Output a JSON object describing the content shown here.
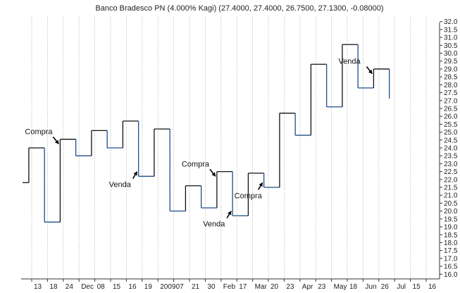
{
  "chart_data": {
    "type": "kagi",
    "title": "Banco Bradesco PN (4.000% Kagi) (27.4000, 27.4000, 26.7500, 27.1300, -0.08000)",
    "y_ticks": [
      "16.0",
      "16.5",
      "17.0",
      "17.5",
      "18.0",
      "18.5",
      "19.0",
      "19.5",
      "20.0",
      "20.5",
      "21.0",
      "21.5",
      "22.0",
      "22.5",
      "23.0",
      "23.5",
      "24.0",
      "24.5",
      "25.0",
      "25.5",
      "26.0",
      "26.5",
      "27.0",
      "27.5",
      "28.0",
      "28.5",
      "29.0",
      "29.5",
      "30.0",
      "30.5",
      "31.0",
      "31.5",
      "32.0"
    ],
    "ylim": [
      15.7,
      32.3
    ],
    "x_ticks": [
      "13",
      "18",
      "24",
      "Dec",
      "08",
      "15",
      "16",
      "19",
      "2009",
      "07",
      "21",
      "30",
      "Feb",
      "17",
      "Mar",
      "20",
      "23",
      "Apr",
      "23",
      "May",
      "18",
      "Jun",
      "26",
      "Jul",
      "15",
      "16"
    ],
    "grid": true,
    "colors": {
      "up": "#111111",
      "down": "#1f4e8c",
      "grid": "#9a9a9a"
    },
    "kagi": {
      "start": 21.8,
      "segments": [
        {
          "dir": "up",
          "to": 24.0
        },
        {
          "dir": "down",
          "to": 19.3
        },
        {
          "dir": "up",
          "to": 24.55
        },
        {
          "dir": "down",
          "to": 23.5
        },
        {
          "dir": "up",
          "to": 25.1
        },
        {
          "dir": "down",
          "to": 24.0
        },
        {
          "dir": "up",
          "to": 25.7
        },
        {
          "dir": "down",
          "to": 22.2
        },
        {
          "dir": "up",
          "to": 25.2
        },
        {
          "dir": "down",
          "to": 20.0
        },
        {
          "dir": "up",
          "to": 21.6
        },
        {
          "dir": "down",
          "to": 20.2
        },
        {
          "dir": "up",
          "to": 22.5
        },
        {
          "dir": "down",
          "to": 19.7
        },
        {
          "dir": "up",
          "to": 22.4
        },
        {
          "dir": "down",
          "to": 21.5
        },
        {
          "dir": "up",
          "to": 26.2
        },
        {
          "dir": "down",
          "to": 24.8
        },
        {
          "dir": "up",
          "to": 29.3
        },
        {
          "dir": "down",
          "to": 26.6
        },
        {
          "dir": "up",
          "to": 30.55
        },
        {
          "dir": "down",
          "to": 27.8
        },
        {
          "dir": "up",
          "to": 29.0
        },
        {
          "dir": "down",
          "to": 27.13
        }
      ]
    },
    "annotations": [
      {
        "text": "Compra",
        "index": 2
      },
      {
        "text": "Venda",
        "index": 7
      },
      {
        "text": "Compra",
        "index": 12
      },
      {
        "text": "Venda",
        "index": 13
      },
      {
        "text": "Compra",
        "index": 15
      },
      {
        "text": "Venda",
        "index": 22
      }
    ]
  }
}
